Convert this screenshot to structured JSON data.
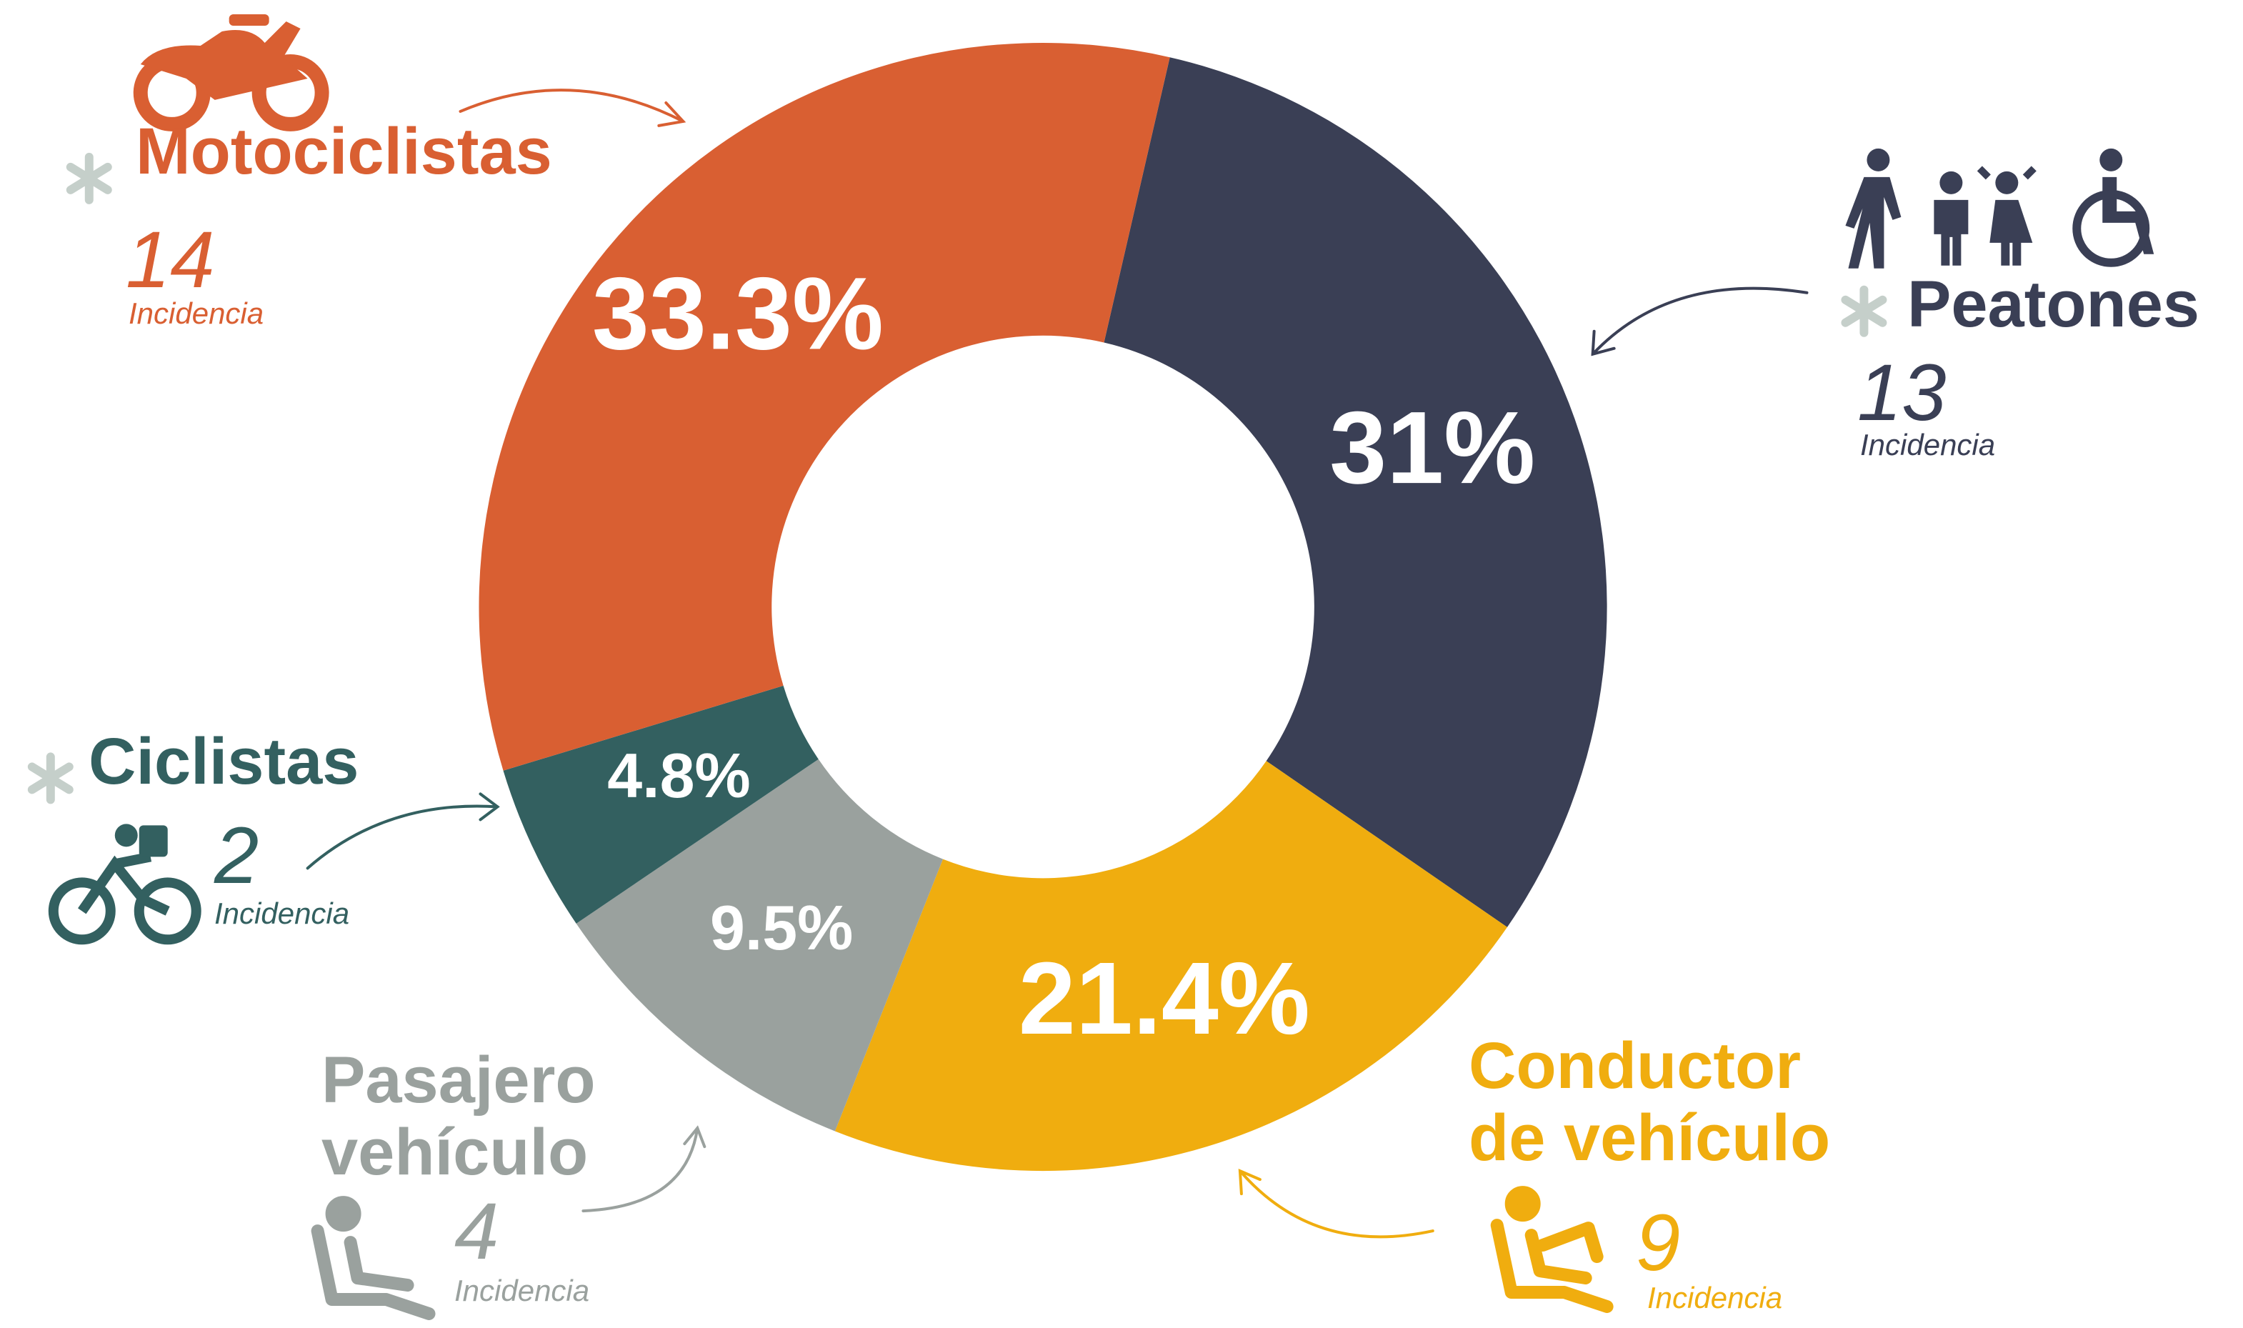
{
  "chart_data": {
    "type": "donut",
    "categories": [
      "Peatones",
      "Conductor de vehículo",
      "Pasajero vehículo",
      "Ciclistas",
      "Motociclistas"
    ],
    "values": [
      31,
      21.4,
      9.5,
      4.8,
      33.3
    ],
    "value_labels": [
      "31%",
      "21.4%",
      "9.5%",
      "4.8%",
      "33.3%"
    ],
    "colors": [
      "#3a3f55",
      "#f0ad0f",
      "#9aa19e",
      "#336060",
      "#d95f32"
    ],
    "counts": [
      13,
      9,
      4,
      2,
      14
    ],
    "count_label": "Incidencia"
  }
}
